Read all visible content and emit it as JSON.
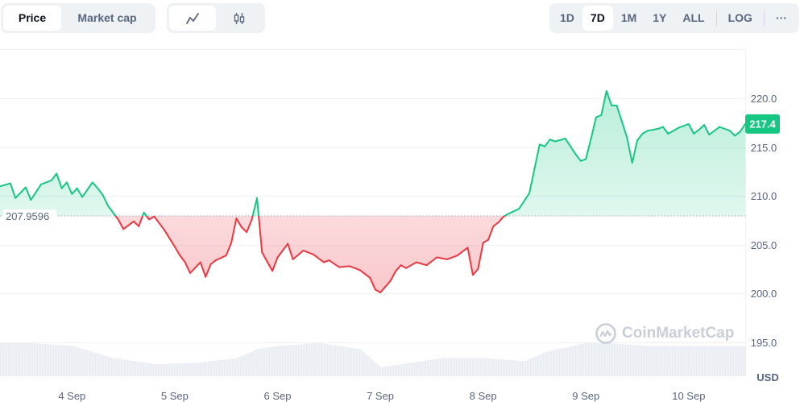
{
  "tabs": {
    "price": "Price",
    "market_cap": "Market cap"
  },
  "chart_modes": {
    "line_icon": "line-chart-icon",
    "candle_icon": "candlestick-icon"
  },
  "ranges": [
    "1D",
    "7D",
    "1M",
    "1Y",
    "ALL"
  ],
  "active_range": "7D",
  "log_label": "LOG",
  "more_label": "···",
  "watermark": "CoinMarketCap",
  "colors": {
    "up": "#16c784",
    "down": "#ea3943",
    "grid": "#eff2f5",
    "text": "#58667e"
  },
  "chart_data": {
    "type": "area",
    "baseline": 207.9596,
    "baseline_label": "207.9596",
    "current_price_label": "217.4",
    "x_labels": [
      "4 Sep",
      "5 Sep",
      "6 Sep",
      "7 Sep",
      "8 Sep",
      "9 Sep",
      "10 Sep"
    ],
    "y_ticks": [
      "220.0",
      "215.0",
      "210.0",
      "205.0",
      "200.0",
      "195.0"
    ],
    "y_unit": "USD",
    "ylim": [
      191.5,
      225.0
    ],
    "xlim": [
      3.3,
      10.55
    ],
    "series": [
      {
        "x": [
          3.3,
          3.4,
          3.45,
          3.55,
          3.6,
          3.7,
          3.8,
          3.85,
          3.9,
          3.95,
          4.0,
          4.05,
          4.1,
          4.2,
          4.25,
          4.3,
          4.35,
          4.45,
          4.5,
          4.6,
          4.65,
          4.7,
          4.75,
          4.8,
          4.9,
          5.0,
          5.05,
          5.1,
          5.15,
          5.25,
          5.3,
          5.35,
          5.4,
          5.5,
          5.55,
          5.6,
          5.65,
          5.7,
          5.75,
          5.8,
          5.85,
          5.95,
          6.0,
          6.1,
          6.15,
          6.25,
          6.35,
          6.45,
          6.5,
          6.6,
          6.7,
          6.8,
          6.9,
          6.95,
          7.0,
          7.05,
          7.1,
          7.15,
          7.2,
          7.25,
          7.35,
          7.45,
          7.55,
          7.65,
          7.75,
          7.85,
          7.9,
          7.95,
          8.0,
          8.05,
          8.1,
          8.15,
          8.2,
          8.25,
          8.35,
          8.45,
          8.55,
          8.6,
          8.65,
          8.7,
          8.8,
          8.9,
          8.95,
          9.0,
          9.05,
          9.1,
          9.15,
          9.2,
          9.25,
          9.3,
          9.4,
          9.45,
          9.5,
          9.55,
          9.6,
          9.7,
          9.75,
          9.8,
          9.9,
          10.0,
          10.05,
          10.1,
          10.15,
          10.2,
          10.3,
          10.4,
          10.45,
          10.5,
          10.55
        ],
        "values": [
          211.0,
          211.3,
          209.8,
          210.9,
          209.6,
          211.2,
          211.6,
          212.3,
          210.8,
          211.4,
          210.2,
          210.8,
          209.9,
          211.4,
          210.8,
          210.1,
          209.0,
          207.6,
          206.6,
          207.4,
          206.9,
          208.3,
          207.6,
          207.9,
          206.5,
          204.8,
          203.9,
          203.2,
          202.1,
          203.2,
          201.7,
          203.0,
          203.4,
          203.9,
          205.2,
          207.7,
          206.8,
          206.3,
          207.6,
          209.8,
          204.2,
          202.3,
          203.7,
          205.1,
          203.5,
          204.4,
          204.0,
          203.2,
          203.4,
          202.7,
          202.8,
          202.4,
          201.6,
          200.4,
          200.1,
          200.7,
          201.3,
          202.3,
          202.9,
          202.6,
          203.2,
          202.9,
          203.7,
          203.5,
          203.9,
          204.7,
          201.9,
          202.5,
          205.2,
          205.5,
          206.9,
          207.3,
          207.9,
          208.2,
          208.7,
          210.3,
          215.3,
          215.1,
          215.8,
          215.6,
          215.9,
          214.3,
          213.6,
          213.8,
          215.9,
          218.1,
          218.3,
          220.8,
          219.3,
          219.3,
          216.0,
          213.4,
          215.7,
          216.4,
          216.7,
          216.9,
          217.1,
          216.4,
          217.0,
          217.4,
          216.4,
          216.8,
          217.3,
          216.3,
          217.1,
          216.7,
          216.2,
          216.6,
          217.4
        ]
      }
    ],
    "volume": {
      "x": [
        3.3,
        3.6,
        4.0,
        4.4,
        4.8,
        5.2,
        5.6,
        5.8,
        6.0,
        6.4,
        6.8,
        7.0,
        7.2,
        7.6,
        8.0,
        8.4,
        8.6,
        9.0,
        9.2,
        9.6,
        10.0,
        10.4,
        10.55
      ],
      "values": [
        0.55,
        0.55,
        0.5,
        0.3,
        0.2,
        0.22,
        0.3,
        0.45,
        0.5,
        0.55,
        0.45,
        0.15,
        0.2,
        0.3,
        0.3,
        0.25,
        0.4,
        0.55,
        0.55,
        0.5,
        0.5,
        0.5,
        0.5
      ]
    }
  }
}
